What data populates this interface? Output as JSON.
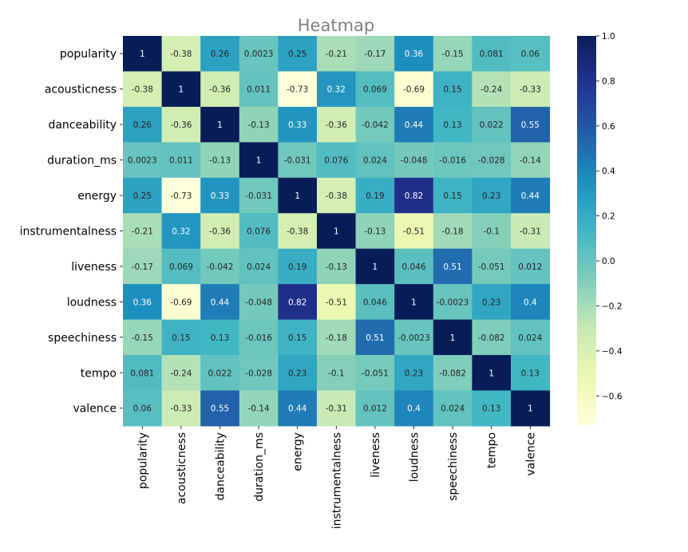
{
  "chart_data": {
    "type": "heatmap",
    "title": "Heatmap",
    "labels": [
      "popularity",
      "acousticness",
      "danceability",
      "duration_ms",
      "energy",
      "instrumentalness",
      "liveness",
      "loudness",
      "speechiness",
      "tempo",
      "valence"
    ],
    "values": [
      [
        1,
        -0.38,
        0.26,
        0.0023,
        0.25,
        -0.21,
        -0.17,
        0.36,
        -0.15,
        0.081,
        0.06
      ],
      [
        -0.38,
        1,
        -0.36,
        0.011,
        -0.73,
        0.32,
        0.069,
        -0.69,
        0.15,
        -0.24,
        -0.33
      ],
      [
        0.26,
        -0.36,
        1,
        -0.13,
        0.33,
        -0.36,
        -0.042,
        0.44,
        0.13,
        0.022,
        0.55
      ],
      [
        0.0023,
        0.011,
        -0.13,
        1,
        -0.031,
        0.076,
        0.024,
        -0.048,
        -0.016,
        -0.028,
        -0.14
      ],
      [
        0.25,
        -0.73,
        0.33,
        -0.031,
        1,
        -0.38,
        0.19,
        0.82,
        0.15,
        0.23,
        0.44
      ],
      [
        -0.21,
        0.32,
        -0.36,
        0.076,
        -0.38,
        1,
        -0.13,
        -0.51,
        -0.18,
        -0.1,
        -0.31
      ],
      [
        -0.17,
        0.069,
        -0.042,
        0.024,
        0.19,
        -0.13,
        1,
        0.046,
        0.51,
        -0.051,
        0.012
      ],
      [
        0.36,
        -0.69,
        0.44,
        -0.048,
        0.82,
        -0.51,
        0.046,
        1,
        -0.0023,
        0.23,
        0.4
      ],
      [
        -0.15,
        0.15,
        0.13,
        -0.016,
        0.15,
        -0.18,
        0.51,
        -0.0023,
        1,
        -0.082,
        0.024
      ],
      [
        0.081,
        -0.24,
        0.022,
        -0.028,
        0.23,
        -0.1,
        -0.051,
        0.23,
        -0.082,
        1,
        0.13
      ],
      [
        0.06,
        -0.33,
        0.55,
        -0.14,
        0.44,
        -0.31,
        0.012,
        0.4,
        0.024,
        0.13,
        1
      ]
    ],
    "colorbar": {
      "min": -0.73,
      "max": 1,
      "ticks": [
        1.0,
        0.8,
        0.6,
        0.4,
        0.2,
        0.0,
        -0.2,
        -0.4,
        -0.6
      ],
      "tick_labels": [
        "1.0",
        "0.8",
        "0.6",
        "0.4",
        "0.2",
        "0.0",
        "−0.2",
        "−0.4",
        "−0.6"
      ],
      "colormap": "YlGnBu"
    },
    "cell_labels": [
      [
        "1",
        "-0.38",
        "0.26",
        "0.0023",
        "0.25",
        "-0.21",
        "-0.17",
        "0.36",
        "-0.15",
        "0.081",
        "0.06"
      ],
      [
        "-0.38",
        "1",
        "-0.36",
        "0.011",
        "-0.73",
        "0.32",
        "0.069",
        "-0.69",
        "0.15",
        "-0.24",
        "-0.33"
      ],
      [
        "0.26",
        "-0.36",
        "1",
        "-0.13",
        "0.33",
        "-0.36",
        "-0.042",
        "0.44",
        "0.13",
        "0.022",
        "0.55"
      ],
      [
        "0.0023",
        "0.011",
        "-0.13",
        "1",
        "-0.031",
        "0.076",
        "0.024",
        "-0.048",
        "-0.016",
        "-0.028",
        "-0.14"
      ],
      [
        "0.25",
        "-0.73",
        "0.33",
        "-0.031",
        "1",
        "-0.38",
        "0.19",
        "0.82",
        "0.15",
        "0.23",
        "0.44"
      ],
      [
        "-0.21",
        "0.32",
        "-0.36",
        "0.076",
        "-0.38",
        "1",
        "-0.13",
        "-0.51",
        "-0.18",
        "-0.1",
        "-0.31"
      ],
      [
        "-0.17",
        "0.069",
        "-0.042",
        "0.024",
        "0.19",
        "-0.13",
        "1",
        "0.046",
        "0.51",
        "-0.051",
        "0.012"
      ],
      [
        "0.36",
        "-0.69",
        "0.44",
        "-0.048",
        "0.82",
        "-0.51",
        "0.046",
        "1",
        "-0.0023",
        "0.23",
        "0.4"
      ],
      [
        "-0.15",
        "0.15",
        "0.13",
        "-0.016",
        "0.15",
        "-0.18",
        "0.51",
        "-0.0023",
        "1",
        "-0.082",
        "0.024"
      ],
      [
        "0.081",
        "-0.24",
        "0.022",
        "-0.028",
        "0.23",
        "-0.1",
        "-0.051",
        "0.23",
        "-0.082",
        "1",
        "0.13"
      ],
      [
        "0.06",
        "-0.33",
        "0.55",
        "-0.14",
        "0.44",
        "-0.31",
        "0.012",
        "0.4",
        "0.024",
        "0.13",
        "1"
      ]
    ]
  }
}
